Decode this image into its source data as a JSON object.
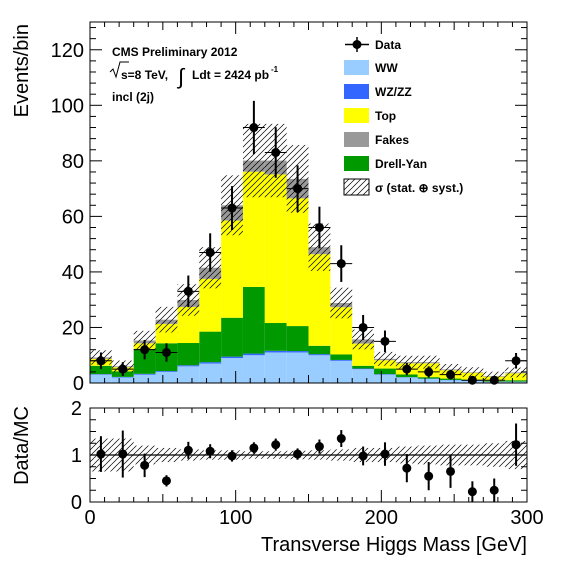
{
  "header": {
    "line1": "CMS Preliminary 2012",
    "sqrt_s": "s=8 TeV,",
    "lumi": "Ldt = 2424 pb",
    "lumi_exp": "-1",
    "selection": "incl (2j)"
  },
  "legend": {
    "data": "Data",
    "ww": "WW",
    "wzzz": "WZ/ZZ",
    "top": "Top",
    "fakes": "Fakes",
    "dy": "Drell-Yan",
    "sigma": "σ (stat. ⊕ syst.)"
  },
  "colors": {
    "ww": "#99ccff",
    "wzzz": "#3366ff",
    "top": "#ffff00",
    "fakes": "#999999",
    "dy": "#009900",
    "data": "#000000"
  },
  "chart_data": [
    {
      "type": "bar",
      "stacked": true,
      "ylabel": "Events/bin",
      "xlim": [
        0,
        300
      ],
      "ylim": [
        0,
        130
      ],
      "bin_edges": [
        0,
        15,
        30,
        45,
        60,
        75,
        90,
        105,
        120,
        135,
        150,
        165,
        180,
        195,
        210,
        225,
        240,
        255,
        270,
        285,
        300
      ],
      "yticks": [
        "0",
        "20",
        "40",
        "60",
        "80",
        "100",
        "120"
      ],
      "series": [
        {
          "name": "WW",
          "values": [
            3,
            2,
            3,
            4,
            6,
            7,
            9,
            10,
            11,
            11,
            10,
            8,
            5,
            3,
            2,
            1.5,
            1,
            0.8,
            0.5,
            0.5
          ]
        },
        {
          "name": "WZ/ZZ",
          "values": [
            0.2,
            0.2,
            0.3,
            0.3,
            0.4,
            0.5,
            0.5,
            0.6,
            0.6,
            0.5,
            0.4,
            0.3,
            0.2,
            0.2,
            0.1,
            0.1,
            0.1,
            0.1,
            0,
            0
          ]
        },
        {
          "name": "Drell-Yan",
          "values": [
            3,
            2,
            9,
            10,
            8,
            11,
            14,
            24,
            10,
            9,
            3,
            2,
            1,
            2,
            1,
            0.5,
            0.5,
            0.3,
            0.3,
            0.5
          ]
        },
        {
          "name": "Top",
          "values": [
            2.5,
            1.5,
            2,
            7,
            13,
            19,
            35,
            41.5,
            53.5,
            46,
            33,
            17,
            8,
            3,
            4,
            5,
            3,
            2.5,
            1.5,
            2.5
          ]
        },
        {
          "name": "Fakes",
          "values": [
            0.5,
            0.3,
            1,
            1.5,
            2.5,
            4,
            5.5,
            4,
            5,
            7,
            2.5,
            1.5,
            1.5,
            0.5,
            0.4,
            0.4,
            0.3,
            0.2,
            0.2,
            0.3
          ]
        }
      ],
      "uncertainty_rel": 0.15,
      "data": {
        "name": "Data",
        "x": [
          7.5,
          22.5,
          37.5,
          52.5,
          67.5,
          82.5,
          97.5,
          112.5,
          127.5,
          142.5,
          157.5,
          172.5,
          187.5,
          202.5,
          217.5,
          232.5,
          247.5,
          262.5,
          277.5,
          292.5
        ],
        "y": [
          8,
          5,
          12,
          11,
          33,
          47,
          63,
          92,
          83,
          70,
          56,
          43,
          20,
          15,
          5,
          4,
          3,
          1,
          1,
          8
        ],
        "err": [
          3,
          2.5,
          3.5,
          3.3,
          5.7,
          6.9,
          7.9,
          9.6,
          9.1,
          8.4,
          7.5,
          6.6,
          4.5,
          3.9,
          2.2,
          2,
          1.7,
          1,
          1,
          2.8
        ]
      },
      "legend_position": "top-right"
    },
    {
      "type": "scatter",
      "ylabel": "Data/MC",
      "xlabel": "Transverse Higgs Mass [GeV]",
      "xlim": [
        0,
        300
      ],
      "ylim": [
        0,
        2
      ],
      "xticks": [
        "0",
        "100",
        "200",
        "300"
      ],
      "yticks": [
        "0",
        "1",
        "2"
      ],
      "reference_line": 1,
      "x": [
        7.5,
        22.5,
        37.5,
        52.5,
        67.5,
        82.5,
        97.5,
        112.5,
        127.5,
        142.5,
        157.5,
        172.5,
        187.5,
        202.5,
        217.5,
        232.5,
        247.5,
        262.5,
        277.5,
        292.5
      ],
      "y": [
        1.02,
        1.02,
        0.78,
        0.45,
        1.1,
        1.08,
        0.98,
        1.15,
        1.22,
        1.02,
        1.18,
        1.35,
        0.98,
        1.02,
        0.72,
        0.55,
        0.65,
        0.22,
        0.25,
        1.22
      ],
      "err": [
        0.38,
        0.5,
        0.25,
        0.12,
        0.18,
        0.15,
        0.12,
        0.12,
        0.13,
        0.12,
        0.15,
        0.18,
        0.2,
        0.25,
        0.3,
        0.3,
        0.35,
        0.22,
        0.25,
        0.45
      ],
      "uncertainty_rel": [
        0.35,
        0.35,
        0.2,
        0.15,
        0.12,
        0.1,
        0.1,
        0.08,
        0.08,
        0.09,
        0.1,
        0.12,
        0.15,
        0.15,
        0.18,
        0.2,
        0.22,
        0.22,
        0.25,
        0.3
      ]
    }
  ]
}
